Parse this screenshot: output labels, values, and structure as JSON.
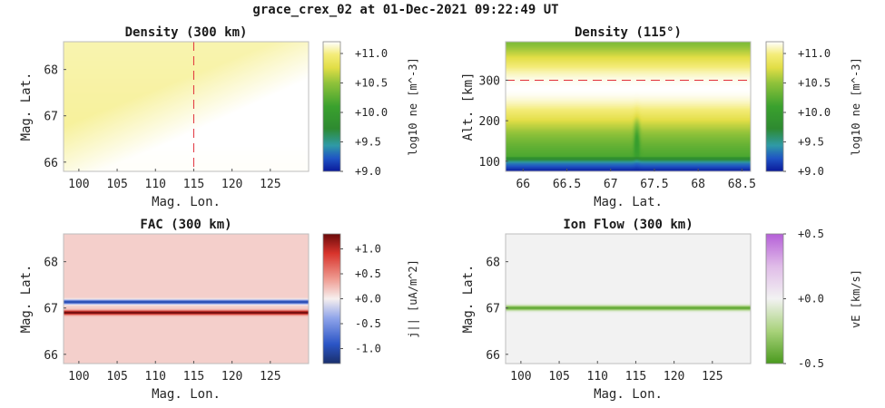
{
  "figure_title": "grace_crex_02 at 01-Dec-2021 09:22:49 UT",
  "chart_data": [
    {
      "type": "heatmap",
      "title": "Density (300 km)",
      "xlabel": "Mag. Lon.",
      "ylabel": "Mag. Lat.",
      "xlim": [
        98,
        130
      ],
      "ylim": [
        65.8,
        68.6
      ],
      "xticks": [
        100,
        105,
        110,
        115,
        120,
        125
      ],
      "xtick_labels": [
        "100",
        "105",
        "110",
        "115",
        "120",
        "125"
      ],
      "yticks": [
        66,
        67,
        68
      ],
      "ytick_labels": [
        "66",
        "67",
        "68"
      ],
      "reference_line": {
        "axis": "x",
        "value": 115,
        "style": "dashed",
        "color": "#e0303a"
      },
      "colorbar": {
        "label": "log10 ne [m^-3]",
        "range": [
          9.0,
          11.2
        ],
        "ticks": [
          9.0,
          9.5,
          10.0,
          10.5,
          11.0
        ],
        "tick_labels": [
          "+9.0",
          "+9.5",
          "+10.0",
          "+10.5",
          "+11.0"
        ],
        "colormap": "density"
      },
      "field": {
        "kind": "density_map",
        "values_log10": {
          "north_west": 11.05,
          "south_east": 11.18
        }
      }
    },
    {
      "type": "heatmap",
      "title": "Density (115°)",
      "xlabel": "Mag. Lat.",
      "ylabel": "Alt. [km]",
      "xlim": [
        65.8,
        68.6
      ],
      "ylim": [
        75,
        395
      ],
      "xticks": [
        66,
        66.5,
        67,
        67.5,
        68,
        68.5
      ],
      "xtick_labels": [
        "66",
        "66.5",
        "67",
        "67.5",
        "68",
        "68.5"
      ],
      "yticks": [
        100,
        200,
        300
      ],
      "ytick_labels": [
        "100",
        "200",
        "300"
      ],
      "reference_line": {
        "axis": "y",
        "value": 300,
        "style": "dashed",
        "color": "#e0303a"
      },
      "colorbar": {
        "label": "log10 ne [m^-3]",
        "range": [
          9.0,
          11.2
        ],
        "ticks": [
          9.0,
          9.5,
          10.0,
          10.5,
          11.0
        ],
        "tick_labels": [
          "+9.0",
          "+9.5",
          "+10.0",
          "+10.5",
          "+11.0"
        ],
        "colormap": "density"
      },
      "field": {
        "kind": "altitude_profile",
        "peak_altitude_km": 280,
        "feature_lat": 67.3
      }
    },
    {
      "type": "heatmap",
      "title": "FAC (300 km)",
      "xlabel": "Mag. Lon.",
      "ylabel": "Mag. Lat.",
      "xlim": [
        98,
        130
      ],
      "ylim": [
        65.8,
        68.6
      ],
      "xticks": [
        100,
        105,
        110,
        115,
        120,
        125
      ],
      "xtick_labels": [
        "100",
        "105",
        "110",
        "115",
        "120",
        "125"
      ],
      "yticks": [
        66,
        67,
        68
      ],
      "ytick_labels": [
        "66",
        "67",
        "68"
      ],
      "colorbar": {
        "label": "j|| [uA/m^2]",
        "range": [
          -1.3,
          1.3
        ],
        "ticks": [
          -1.0,
          -0.5,
          0.0,
          0.5,
          1.0
        ],
        "tick_labels": [
          "-1.0",
          "-0.5",
          "+0.0",
          "+0.5",
          "+1.0"
        ],
        "colormap": "seismic"
      },
      "field": {
        "kind": "lat_bands",
        "background": 0.15,
        "bands": [
          {
            "lat": 67.13,
            "amp": -1.2,
            "width": 0.045
          },
          {
            "lat": 66.9,
            "amp": 1.2,
            "width": 0.045
          }
        ]
      }
    },
    {
      "type": "heatmap",
      "title": "Ion Flow (300 km)",
      "xlabel": "Mag. Lon.",
      "ylabel": "Mag. Lat.",
      "xlim": [
        98,
        130
      ],
      "ylim": [
        65.8,
        68.6
      ],
      "xticks": [
        100,
        105,
        110,
        115,
        120,
        125
      ],
      "xtick_labels": [
        "100",
        "105",
        "110",
        "115",
        "120",
        "125"
      ],
      "yticks": [
        66,
        67,
        68
      ],
      "ytick_labels": [
        "66",
        "67",
        "68"
      ],
      "colorbar": {
        "label": "vE [km/s]",
        "range": [
          -0.5,
          0.5
        ],
        "ticks": [
          -0.5,
          0.0,
          0.5
        ],
        "tick_labels": [
          "-0.5",
          "+0.0",
          "+0.5"
        ],
        "colormap": "PiYG"
      },
      "field": {
        "kind": "lat_bands",
        "background": 0.0,
        "bands": [
          {
            "lat": 67.0,
            "amp": -0.45,
            "width": 0.05
          }
        ]
      }
    }
  ]
}
